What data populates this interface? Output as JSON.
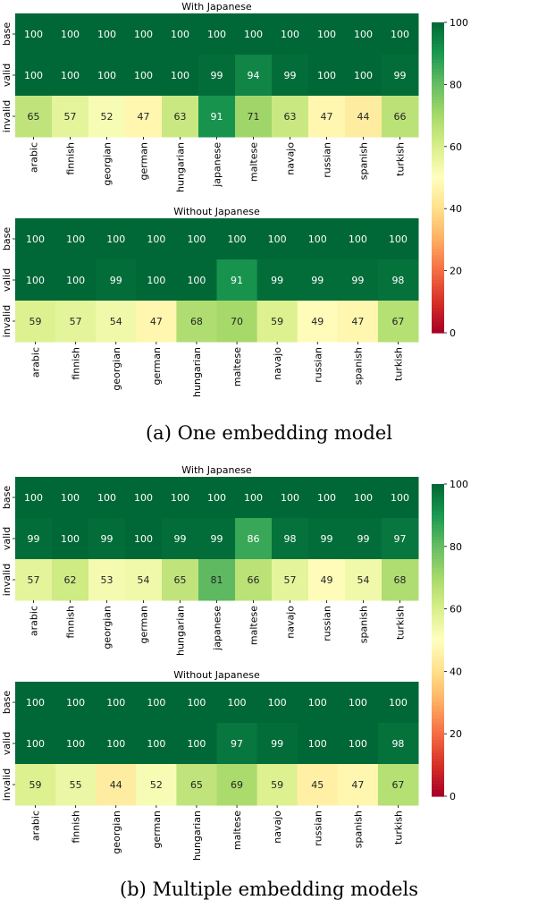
{
  "chart_data": [
    {
      "type": "heatmap",
      "panel": "a",
      "title": "With Japanese",
      "rows": [
        "base",
        "valid",
        "invalid"
      ],
      "columns": [
        "arabic",
        "finnish",
        "georgian",
        "german",
        "hungarian",
        "japanese",
        "maltese",
        "navajo",
        "russian",
        "spanish",
        "turkish"
      ],
      "values": [
        [
          100,
          100,
          100,
          100,
          100,
          100,
          100,
          100,
          100,
          100,
          100
        ],
        [
          100,
          100,
          100,
          100,
          100,
          99,
          94,
          99,
          100,
          100,
          99
        ],
        [
          65,
          57,
          52,
          47,
          63,
          91,
          71,
          63,
          47,
          44,
          66
        ]
      ],
      "colormap": "RdYlGn",
      "vrange": [
        0,
        100
      ]
    },
    {
      "type": "heatmap",
      "panel": "a",
      "title": "Without Japanese",
      "rows": [
        "base",
        "valid",
        "invalid"
      ],
      "columns": [
        "arabic",
        "finnish",
        "georgian",
        "german",
        "hungarian",
        "maltese",
        "navajo",
        "russian",
        "spanish",
        "turkish"
      ],
      "values": [
        [
          100,
          100,
          100,
          100,
          100,
          100,
          100,
          100,
          100,
          100
        ],
        [
          100,
          100,
          99,
          100,
          100,
          91,
          99,
          99,
          99,
          98
        ],
        [
          59,
          57,
          54,
          47,
          68,
          70,
          59,
          49,
          47,
          67
        ]
      ],
      "colormap": "RdYlGn",
      "vrange": [
        0,
        100
      ]
    },
    {
      "type": "heatmap",
      "panel": "b",
      "title": "With Japanese",
      "rows": [
        "base",
        "valid",
        "invalid"
      ],
      "columns": [
        "arabic",
        "finnish",
        "georgian",
        "german",
        "hungarian",
        "japanese",
        "maltese",
        "navajo",
        "russian",
        "spanish",
        "turkish"
      ],
      "values": [
        [
          100,
          100,
          100,
          100,
          100,
          100,
          100,
          100,
          100,
          100,
          100
        ],
        [
          99,
          100,
          99,
          100,
          99,
          99,
          86,
          98,
          99,
          99,
          97
        ],
        [
          57,
          62,
          53,
          54,
          65,
          81,
          66,
          57,
          49,
          54,
          68
        ]
      ],
      "colormap": "RdYlGn",
      "vrange": [
        0,
        100
      ]
    },
    {
      "type": "heatmap",
      "panel": "b",
      "title": "Without Japanese",
      "rows": [
        "base",
        "valid",
        "invalid"
      ],
      "columns": [
        "arabic",
        "finnish",
        "georgian",
        "german",
        "hungarian",
        "maltese",
        "navajo",
        "russian",
        "spanish",
        "turkish"
      ],
      "values": [
        [
          100,
          100,
          100,
          100,
          100,
          100,
          100,
          100,
          100,
          100
        ],
        [
          100,
          100,
          100,
          100,
          100,
          97,
          99,
          100,
          100,
          98
        ],
        [
          59,
          55,
          44,
          52,
          65,
          69,
          59,
          45,
          47,
          67
        ]
      ],
      "colormap": "RdYlGn",
      "vrange": [
        0,
        100
      ]
    }
  ],
  "colorbar": {
    "ticks": [
      "0",
      "20",
      "40",
      "60",
      "80",
      "100"
    ]
  },
  "captions": {
    "a": "(a) One embedding model",
    "b": "(b) Multiple embedding models"
  }
}
